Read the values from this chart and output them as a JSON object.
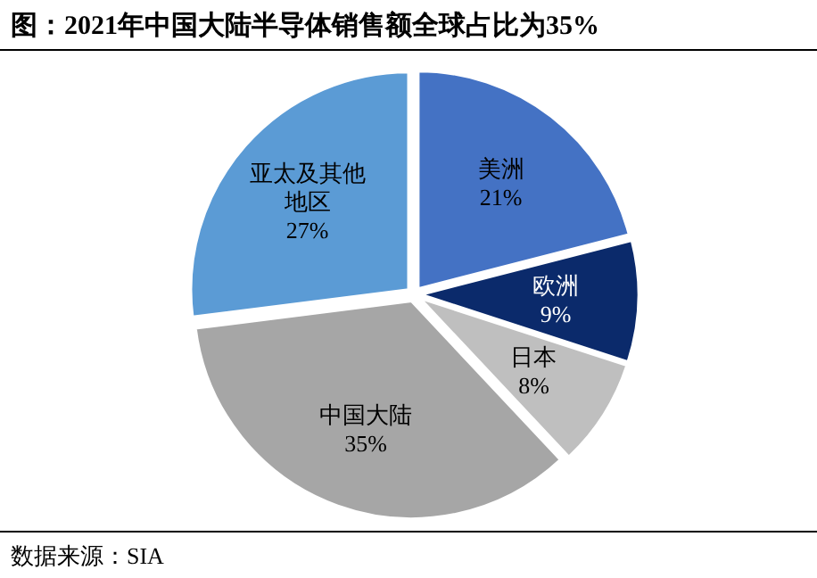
{
  "chart_data": {
    "type": "pie",
    "title": "图：2021年中国大陆半导体销售额全球占比为35%",
    "categories": [
      "美洲",
      "欧洲",
      "日本",
      "中国大陆",
      "亚太及其他地区"
    ],
    "values": [
      21,
      9,
      8,
      35,
      27
    ],
    "colors": [
      "#4472c4",
      "#0b2a6b",
      "#bfbfbf",
      "#a6a6a6",
      "#5b9bd5"
    ],
    "value_labels": [
      "21%",
      "9%",
      "8%",
      "35%",
      "27%"
    ],
    "annotations": [
      "数据来源：SIA"
    ]
  }
}
